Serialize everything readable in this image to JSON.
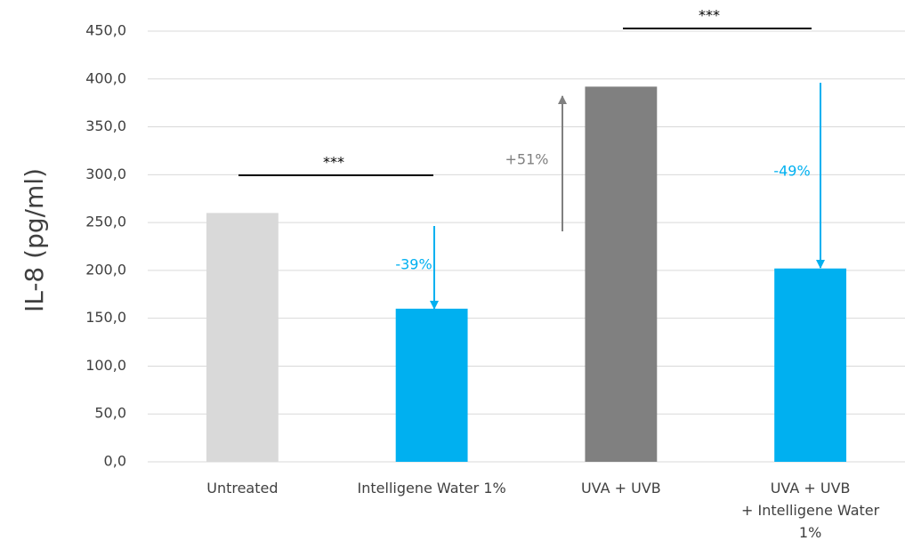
{
  "chart_data": {
    "type": "bar",
    "y_label": "IL-8 (pg/ml)",
    "categories": [
      "Untreated",
      "Intelligene Water 1%",
      "UVA + UVB",
      "UVA + UVB\n+ Intelligene Water\n1%"
    ],
    "values": [
      260,
      160,
      392,
      202
    ],
    "colors": [
      "#d9d9d9",
      "#00b0f0",
      "#808080",
      "#00b0f0"
    ],
    "ylim": [
      0,
      450
    ],
    "yticks": [
      {
        "value": 0,
        "label": "0,0"
      },
      {
        "value": 50,
        "label": "50,0"
      },
      {
        "value": 100,
        "label": "100,0"
      },
      {
        "value": 150,
        "label": "150,0"
      },
      {
        "value": 200,
        "label": "200,0"
      },
      {
        "value": 250,
        "label": "250,0"
      },
      {
        "value": 300,
        "label": "300,0"
      },
      {
        "value": 350,
        "label": "350,0"
      },
      {
        "value": 400,
        "label": "400,0"
      },
      {
        "value": 450,
        "label": "450,0"
      }
    ],
    "grid": true,
    "annotations": [
      "***",
      "***",
      "+51%",
      "-39%",
      "-49%"
    ]
  }
}
